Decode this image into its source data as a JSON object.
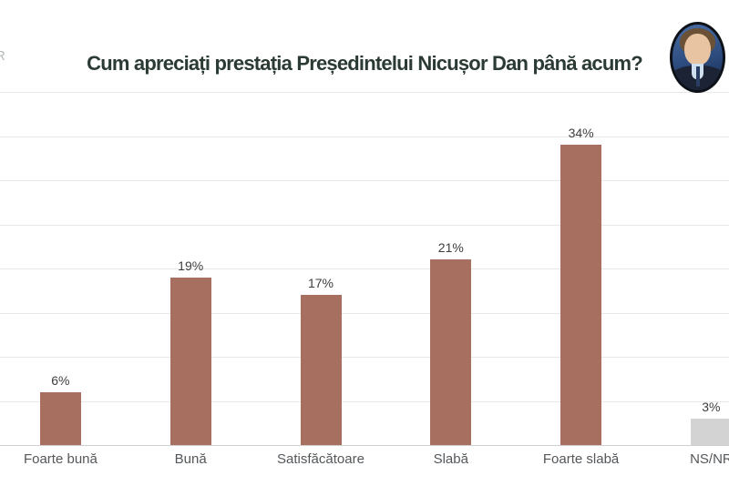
{
  "header": {
    "title": "Cum apreciați prestația Președintelui Nicușor Dan până acum?",
    "title_color": "#2b3b34",
    "logo_fragment": "R"
  },
  "avatar": {
    "icon": "nicusor-dan-portrait-photo"
  },
  "chart_data": {
    "type": "bar",
    "title": "Cum apreciați prestația Președintelui Nicușor Dan până acum?",
    "categories": [
      "Foarte bună",
      "Bună",
      "Satisfăcătoare",
      "Slabă",
      "Foarte slabă",
      "NS/NR"
    ],
    "values": [
      6,
      19,
      17,
      21,
      34,
      3
    ],
    "value_labels": [
      "6%",
      "19%",
      "17%",
      "21%",
      "34%",
      "3%"
    ],
    "xlabel": "",
    "ylabel": "",
    "ylim": [
      0,
      40
    ],
    "gridline_step": 5,
    "grid": true,
    "legend_position": "none",
    "colors": [
      "#a76f60",
      "#a76f60",
      "#a76f60",
      "#a76f60",
      "#a76f60",
      "#d3d3d3"
    ],
    "bar_color": "#a76f60",
    "ns_nr_bar_color": "#d3d3d3",
    "value_label_color": "#3d3d3d",
    "category_label_color": "#54585b",
    "gridline_color": "#e8e8e8",
    "axis_color": "#cfcfcf"
  }
}
